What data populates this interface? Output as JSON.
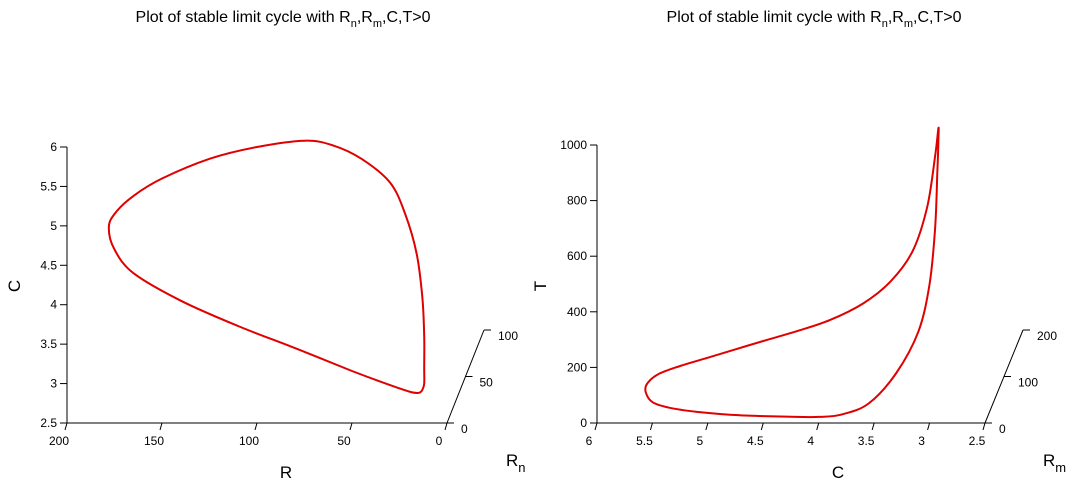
{
  "chart_data": [
    {
      "type": "line",
      "projection": "3d",
      "title": "Plot of stable limit cycle with R",
      "title_parts": [
        {
          "text": "Plot of stable limit cycle with R",
          "sub": false
        },
        {
          "text": "n",
          "sub": true
        },
        {
          "text": ",R",
          "sub": false
        },
        {
          "text": "m",
          "sub": true
        },
        {
          "text": ",C,T>0",
          "sub": false
        }
      ],
      "xlabel": "R",
      "ylabel": "C",
      "zlabel": "R",
      "zlabel_sub": "n",
      "xlim": [
        200,
        0
      ],
      "ylim": [
        2.5,
        6
      ],
      "zlim": [
        0,
        100
      ],
      "xticks": [
        "200",
        "150",
        "100",
        "50",
        "0"
      ],
      "yticks": [
        "2.5",
        "3",
        "3.5",
        "4",
        "4.5",
        "5",
        "5.5",
        "6"
      ],
      "zticks": [
        "0",
        "50",
        "100"
      ],
      "grid": false,
      "series": [
        {
          "color": "#e00000",
          "x": [
            75,
            60,
            45,
            30,
            22,
            16,
            13,
            12,
            12,
            12,
            13,
            14,
            16,
            20,
            30,
            50,
            80,
            110,
            140,
            165,
            175,
            178,
            175,
            165,
            150,
            125,
            100,
            75
          ],
          "y": [
            6.08,
            6.02,
            5.85,
            5.55,
            5.15,
            4.65,
            4.1,
            3.6,
            3.2,
            3.0,
            2.92,
            2.89,
            2.88,
            2.9,
            2.98,
            3.16,
            3.45,
            3.73,
            4.05,
            4.4,
            4.7,
            4.97,
            5.15,
            5.38,
            5.6,
            5.85,
            6.0,
            6.08
          ]
        }
      ]
    },
    {
      "type": "line",
      "projection": "3d",
      "title": "Plot of stable limit cycle with R",
      "title_parts": [
        {
          "text": "Plot of stable limit cycle with R",
          "sub": false
        },
        {
          "text": "n",
          "sub": true
        },
        {
          "text": ",R",
          "sub": false
        },
        {
          "text": "m",
          "sub": true
        },
        {
          "text": ",C,T>0",
          "sub": false
        }
      ],
      "xlabel": "C",
      "ylabel": "T",
      "zlabel": "R",
      "zlabel_sub": "m",
      "xlim": [
        6,
        2.5
      ],
      "ylim": [
        0,
        1000
      ],
      "zlim": [
        0,
        200
      ],
      "xticks": [
        "6",
        "5.5",
        "5",
        "4.5",
        "4",
        "3.5",
        "3",
        "2.5"
      ],
      "yticks": [
        "0",
        "200",
        "400",
        "600",
        "800",
        "1000"
      ],
      "zticks": [
        "0",
        "100",
        "200"
      ],
      "grid": false,
      "series": [
        {
          "color": "#e00000",
          "x": [
            2.92,
            2.92,
            2.93,
            2.95,
            3.0,
            3.1,
            3.3,
            3.55,
            3.8,
            4.0,
            4.2,
            4.5,
            4.8,
            5.1,
            5.35,
            5.5,
            5.56,
            5.55,
            5.45,
            5.25,
            5.0,
            4.75,
            4.5,
            4.2,
            3.9,
            3.6,
            3.35,
            3.15,
            3.02,
            2.95,
            2.92
          ],
          "y": [
            1060,
            1020,
            900,
            700,
            500,
            330,
            180,
            70,
            30,
            22,
            22,
            25,
            30,
            40,
            55,
            75,
            110,
            140,
            175,
            205,
            235,
            265,
            295,
            330,
            370,
            430,
            510,
            620,
            780,
            960,
            1060
          ]
        }
      ]
    }
  ]
}
